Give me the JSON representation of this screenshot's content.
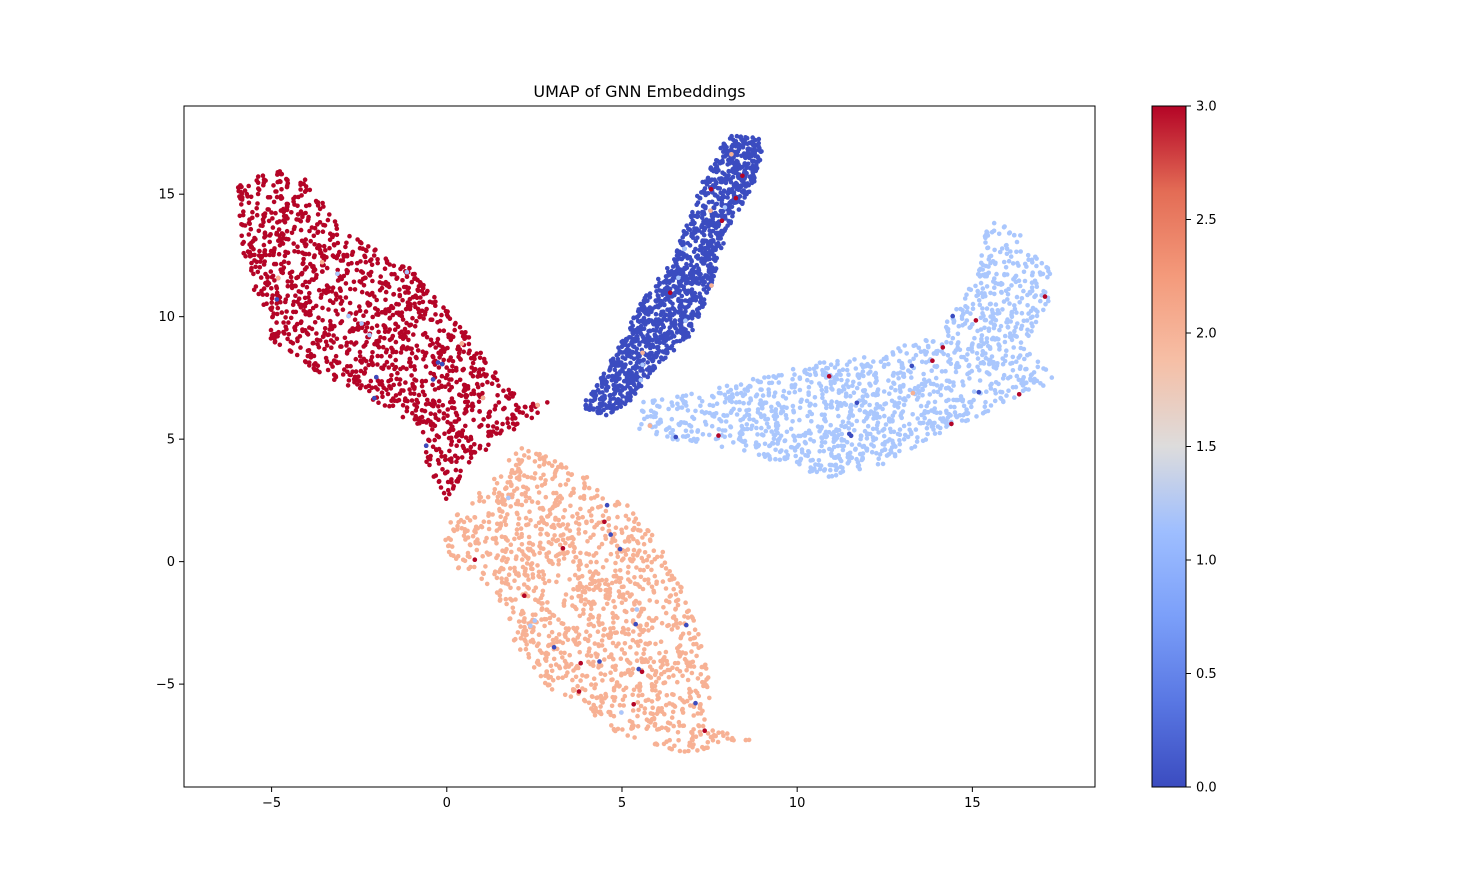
{
  "chart_data": {
    "type": "scatter",
    "title": "UMAP of GNN Embeddings",
    "xlabel": "",
    "ylabel": "",
    "xlim": [
      -7.5,
      18.5
    ],
    "ylim": [
      -9.2,
      18.6
    ],
    "xticks": [
      -5,
      0,
      5,
      10,
      15
    ],
    "yticks": [
      -5,
      0,
      5,
      10,
      15
    ],
    "grid": false,
    "colormap": "coolwarm",
    "colorbar": {
      "range": [
        0.0,
        3.0
      ],
      "ticks": [
        0.0,
        0.5,
        1.0,
        1.5,
        2.0,
        2.5,
        3.0
      ],
      "tick_labels": [
        "0.0",
        "0.5",
        "1.0",
        "1.5",
        "2.0",
        "2.5",
        "3.0"
      ]
    },
    "clusters": [
      {
        "label_value": 3,
        "color": "#b40426",
        "polygon": [
          [
            -6.0,
            15.4
          ],
          [
            -4.8,
            16.1
          ],
          [
            -4.0,
            15.6
          ],
          [
            -3.0,
            13.5
          ],
          [
            -1.2,
            12.2
          ],
          [
            0.5,
            9.5
          ],
          [
            1.5,
            7.5
          ],
          [
            2.2,
            6.5
          ],
          [
            3.0,
            6.5
          ],
          [
            2.5,
            5.8
          ],
          [
            1.5,
            5.0
          ],
          [
            0.8,
            4.2
          ],
          [
            0.0,
            2.5
          ],
          [
            -0.5,
            3.5
          ],
          [
            -0.8,
            5.5
          ],
          [
            -2.0,
            6.5
          ],
          [
            -3.5,
            7.5
          ],
          [
            -5.0,
            9.0
          ],
          [
            -5.5,
            11.0
          ],
          [
            -5.8,
            12.5
          ]
        ]
      },
      {
        "label_value": 0,
        "color": "#3b4cc0",
        "polygon": [
          [
            6.5,
            12.5
          ],
          [
            7.3,
            15.5
          ],
          [
            8.0,
            17.4
          ],
          [
            9.1,
            17.3
          ],
          [
            8.8,
            15.5
          ],
          [
            8.0,
            13.5
          ],
          [
            7.5,
            11.0
          ],
          [
            7.0,
            9.3
          ],
          [
            6.0,
            8.0
          ],
          [
            5.2,
            6.5
          ],
          [
            4.5,
            5.9
          ],
          [
            3.8,
            6.3
          ],
          [
            4.2,
            7.0
          ],
          [
            4.8,
            8.5
          ],
          [
            5.5,
            10.5
          ]
        ]
      },
      {
        "label_value": 1,
        "color": "#aac7fd",
        "polygon": [
          [
            5.5,
            6.5
          ],
          [
            7.5,
            7.0
          ],
          [
            10.5,
            8.1
          ],
          [
            12.0,
            8.4
          ],
          [
            14.0,
            9.2
          ],
          [
            15.0,
            11.5
          ],
          [
            15.5,
            14.0
          ],
          [
            16.3,
            13.5
          ],
          [
            17.2,
            12.0
          ],
          [
            17.3,
            10.5
          ],
          [
            16.5,
            9.0
          ],
          [
            17.4,
            7.4
          ],
          [
            16.0,
            6.5
          ],
          [
            14.0,
            5.2
          ],
          [
            12.5,
            4.0
          ],
          [
            11.0,
            3.4
          ],
          [
            10.0,
            3.8
          ],
          [
            8.5,
            4.5
          ],
          [
            7.0,
            4.8
          ],
          [
            5.5,
            5.3
          ]
        ]
      },
      {
        "label_value": 2,
        "color": "#f7b194",
        "polygon": [
          [
            -0.2,
            1.2
          ],
          [
            1.0,
            3.0
          ],
          [
            2.2,
            4.8
          ],
          [
            3.5,
            3.8
          ],
          [
            4.5,
            3.2
          ],
          [
            5.5,
            2.0
          ],
          [
            6.2,
            0.5
          ],
          [
            7.0,
            -2.0
          ],
          [
            7.5,
            -4.5
          ],
          [
            7.5,
            -6.8
          ],
          [
            8.7,
            -7.3
          ],
          [
            7.0,
            -7.8
          ],
          [
            6.2,
            -7.7
          ],
          [
            5.0,
            -7.2
          ],
          [
            4.0,
            -6.0
          ],
          [
            3.0,
            -5.3
          ],
          [
            2.0,
            -3.5
          ],
          [
            1.2,
            -1.0
          ],
          [
            0.0,
            0.0
          ]
        ]
      }
    ]
  }
}
